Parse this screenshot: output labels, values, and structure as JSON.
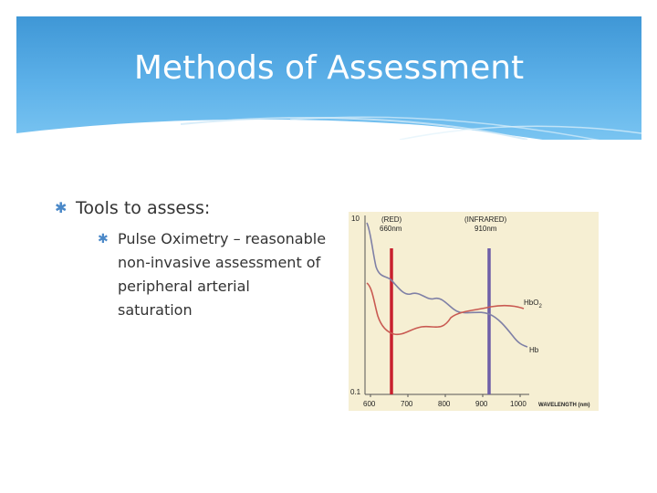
{
  "slide": {
    "title": "Methods of Assessment",
    "bullets": [
      {
        "text": "Tools to assess:",
        "children": [
          {
            "text": "Pulse Oximetry – reasonable non-invasive assessment of peripheral arterial saturation"
          }
        ]
      }
    ]
  },
  "figure": {
    "y_top_label": "10",
    "y_bottom_label": "0.1",
    "red_label": "(RED)",
    "red_wavelength": "660nm",
    "ir_label": "(INFRARED)",
    "ir_wavelength": "910nm",
    "x_ticks": [
      "600",
      "700",
      "800",
      "900",
      "1000"
    ],
    "x_axis_label": "WAVELENGTH (nm)",
    "hbo2_label": "HbO",
    "hbo2_subscript": "2",
    "hb_label": "Hb",
    "colors": {
      "red_line": "#c8202e",
      "ir_line": "#6e5fa8",
      "hbo2_curve": "#c95a52",
      "hb_curve": "#7f80a6",
      "background": "#f6efd3"
    }
  }
}
